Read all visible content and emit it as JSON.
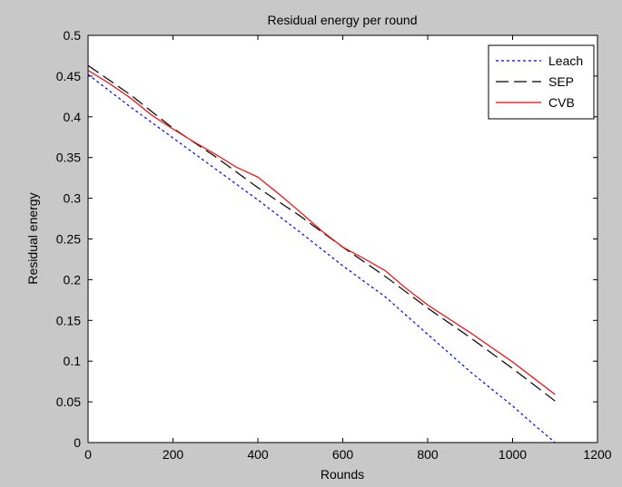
{
  "chart_data": {
    "type": "line",
    "title": "Residual energy per round",
    "xlabel": "Rounds",
    "ylabel": "Residual energy",
    "xlim": [
      0,
      1200
    ],
    "ylim": [
      0,
      0.5
    ],
    "xticks": [
      0,
      200,
      400,
      600,
      800,
      1000,
      1200
    ],
    "yticks": [
      0,
      0.05,
      0.1,
      0.15,
      0.2,
      0.25,
      0.3,
      0.35,
      0.4,
      0.45,
      0.5
    ],
    "xtick_labels": [
      "0",
      "200",
      "400",
      "600",
      "800",
      "1000",
      "1200"
    ],
    "ytick_labels": [
      "0",
      "0.05",
      "0.1",
      "0.15",
      "0.2",
      "0.25",
      "0.3",
      "0.35",
      "0.4",
      "0.45",
      "0.5"
    ],
    "grid": false,
    "legend_position": "top-right",
    "series": [
      {
        "name": "Leach",
        "color": "#0000ff",
        "style": "dotted",
        "x": [
          0,
          100,
          200,
          300,
          400,
          500,
          600,
          700,
          800,
          900,
          950,
          1000,
          1050,
          1100
        ],
        "y": [
          0.452,
          0.412,
          0.374,
          0.336,
          0.298,
          0.258,
          0.217,
          0.179,
          0.133,
          0.087,
          0.066,
          0.045,
          0.022,
          0.0
        ]
      },
      {
        "name": "SEP",
        "color": "#000000",
        "style": "dashed",
        "x": [
          0,
          100,
          200,
          300,
          400,
          500,
          600,
          700,
          800,
          900,
          1000,
          1100
        ],
        "y": [
          0.463,
          0.427,
          0.386,
          0.351,
          0.313,
          0.278,
          0.24,
          0.204,
          0.165,
          0.129,
          0.091,
          0.051
        ]
      },
      {
        "name": "CVB",
        "color": "#ff0000",
        "style": "solid",
        "x": [
          0,
          50,
          100,
          150,
          200,
          250,
          300,
          350,
          400,
          450,
          500,
          550,
          600,
          650,
          700,
          750,
          800,
          900,
          1000,
          1100
        ],
        "y": [
          0.457,
          0.441,
          0.423,
          0.402,
          0.385,
          0.369,
          0.354,
          0.338,
          0.326,
          0.305,
          0.283,
          0.26,
          0.24,
          0.226,
          0.211,
          0.189,
          0.169,
          0.135,
          0.099,
          0.059
        ]
      }
    ]
  }
}
